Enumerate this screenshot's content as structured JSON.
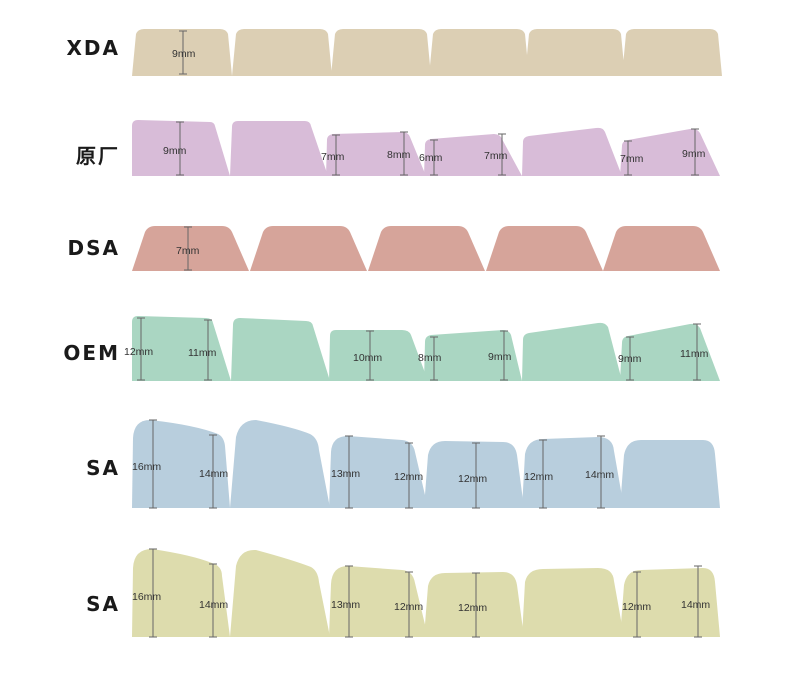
{
  "rows": [
    {
      "label": "XDA",
      "color": "#dccfb4",
      "caps": [
        {
          "dims": [
            "9mm"
          ]
        },
        {
          "dims": []
        },
        {
          "dims": []
        },
        {
          "dims": []
        },
        {
          "dims": []
        },
        {
          "dims": []
        }
      ]
    },
    {
      "label": "原厂",
      "color": "#d8bcd8",
      "caps": [
        {
          "dims": [
            "9mm"
          ]
        },
        {
          "dims": []
        },
        {
          "dims": [
            "7mm",
            "8mm"
          ]
        },
        {
          "dims": [
            "6mm",
            "7mm"
          ]
        },
        {
          "dims": []
        },
        {
          "dims": [
            "7mm",
            "9mm"
          ]
        }
      ]
    },
    {
      "label": "DSA",
      "color": "#d6a49a",
      "caps": [
        {
          "dims": [
            "7mm"
          ]
        },
        {
          "dims": []
        },
        {
          "dims": []
        },
        {
          "dims": []
        },
        {
          "dims": []
        }
      ]
    },
    {
      "label": "OEM",
      "color": "#aad6c2",
      "caps": [
        {
          "dims": [
            "12mm",
            "11mm"
          ]
        },
        {
          "dims": []
        },
        {
          "dims": [
            "10mm"
          ]
        },
        {
          "dims": [
            "8mm",
            "9mm"
          ]
        },
        {
          "dims": []
        },
        {
          "dims": [
            "9mm",
            "11mm"
          ]
        }
      ]
    },
    {
      "label": "SA",
      "color": "#b8cedd",
      "caps": [
        {
          "dims": [
            "16mm",
            "14mm"
          ]
        },
        {
          "dims": []
        },
        {
          "dims": [
            "13mm",
            "12mm"
          ]
        },
        {
          "dims": [
            "12mm"
          ]
        },
        {
          "dims": [
            "12mm",
            "14mm"
          ]
        },
        {
          "dims": []
        }
      ]
    },
    {
      "label": "SA",
      "color": "#dddcad",
      "caps": [
        {
          "dims": [
            "16mm",
            "14mm"
          ]
        },
        {
          "dims": []
        },
        {
          "dims": [
            "13mm",
            "12mm"
          ]
        },
        {
          "dims": [
            "12mm"
          ]
        },
        {
          "dims": []
        },
        {
          "dims": [
            "12mm",
            "14mm"
          ]
        }
      ]
    }
  ]
}
